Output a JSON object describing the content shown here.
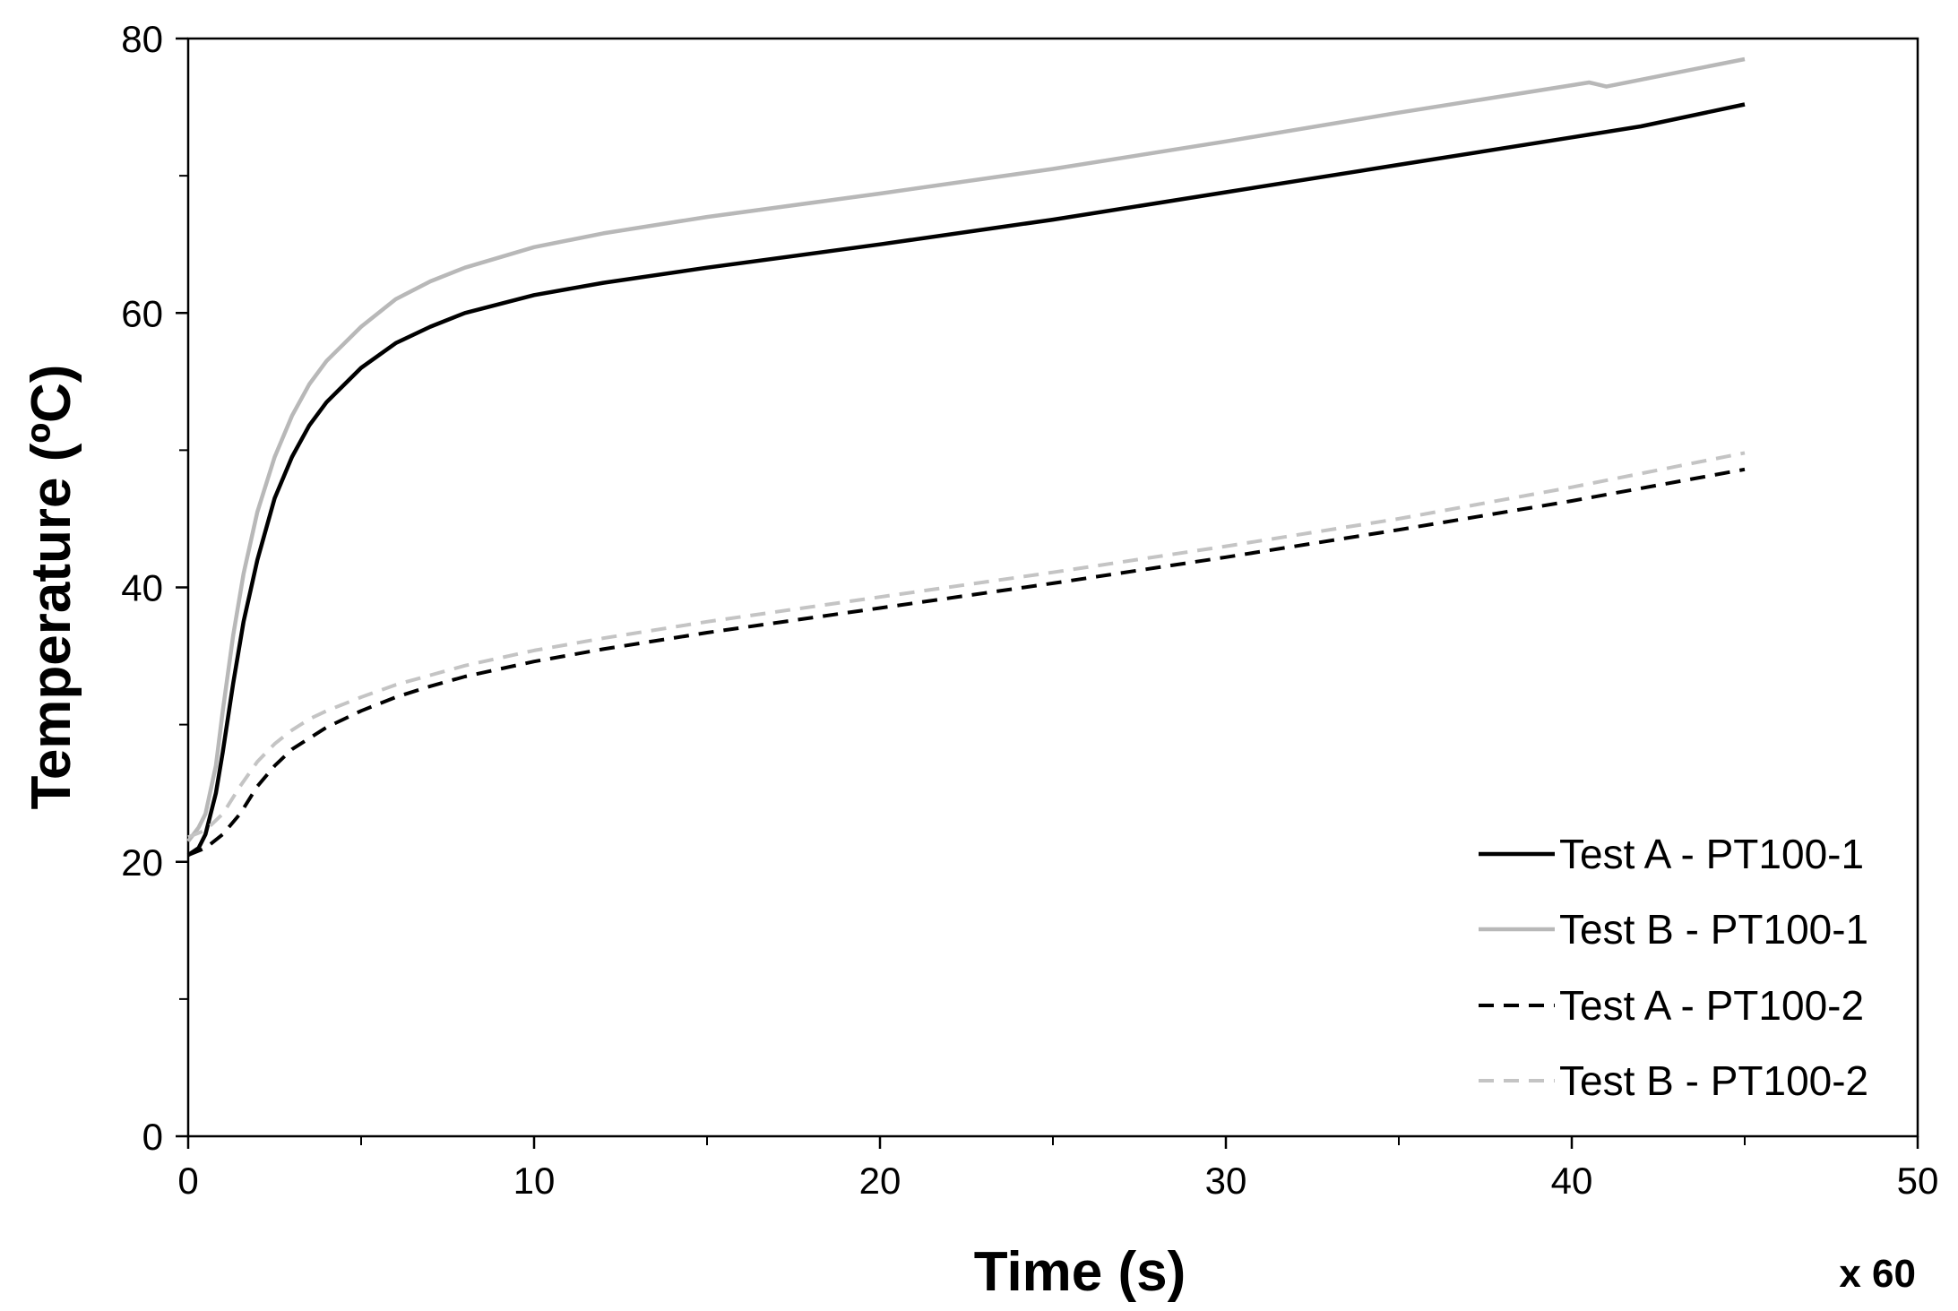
{
  "chart_data": {
    "type": "line",
    "title": "",
    "xlabel": "Time (s)",
    "ylabel": "Temperature (ºC)",
    "x_multiplier": "x 60",
    "xlim": [
      0,
      50
    ],
    "ylim": [
      0,
      80
    ],
    "x_ticks": [
      0,
      10,
      20,
      30,
      40,
      50
    ],
    "y_ticks": [
      0,
      20,
      40,
      60,
      80
    ],
    "grid": false,
    "legend_position": "bottom-right",
    "series": [
      {
        "name": "Test A - PT100-1",
        "color": "#000000",
        "style": "solid",
        "x": [
          0,
          0.3,
          0.5,
          0.8,
          1.0,
          1.3,
          1.6,
          2.0,
          2.5,
          3.0,
          3.5,
          4.0,
          5.0,
          6.0,
          7.0,
          8.0,
          10.0,
          12.0,
          15.0,
          20.0,
          25.0,
          30.0,
          35.0,
          40.0,
          42.0,
          45.0
        ],
        "y": [
          20.5,
          21.0,
          22.0,
          25.0,
          28.0,
          33.0,
          37.5,
          42.0,
          46.5,
          49.5,
          51.8,
          53.5,
          56.0,
          57.8,
          59.0,
          60.0,
          61.3,
          62.2,
          63.3,
          65.0,
          66.8,
          68.8,
          70.8,
          72.8,
          73.6,
          75.2
        ]
      },
      {
        "name": "Test B - PT100-1",
        "color": "#b8b8b8",
        "style": "solid",
        "x": [
          0,
          0.3,
          0.5,
          0.8,
          1.0,
          1.3,
          1.6,
          2.0,
          2.5,
          3.0,
          3.5,
          4.0,
          5.0,
          6.0,
          7.0,
          8.0,
          10.0,
          12.0,
          15.0,
          20.0,
          25.0,
          30.0,
          35.0,
          40.0,
          40.5,
          41.0,
          42.0,
          45.0
        ],
        "y": [
          21.5,
          22.5,
          23.5,
          27.0,
          31.0,
          36.5,
          41.0,
          45.5,
          49.5,
          52.5,
          54.8,
          56.5,
          59.0,
          61.0,
          62.3,
          63.3,
          64.8,
          65.8,
          67.0,
          68.7,
          70.5,
          72.5,
          74.6,
          76.6,
          76.8,
          76.5,
          77.0,
          78.5
        ]
      },
      {
        "name": "Test A - PT100-2",
        "color": "#000000",
        "style": "dashed",
        "x": [
          0,
          0.5,
          1.0,
          1.5,
          2.0,
          2.5,
          3.0,
          3.5,
          4.0,
          5.0,
          6.0,
          7.0,
          8.0,
          10.0,
          12.0,
          15.0,
          20.0,
          25.0,
          30.0,
          35.0,
          40.0,
          45.0
        ],
        "y": [
          20.5,
          21.0,
          22.0,
          23.5,
          25.5,
          27.0,
          28.2,
          29.0,
          29.8,
          31.0,
          32.0,
          32.8,
          33.5,
          34.6,
          35.5,
          36.7,
          38.5,
          40.3,
          42.2,
          44.2,
          46.3,
          48.6
        ]
      },
      {
        "name": "Test B - PT100-2",
        "color": "#c4c4c4",
        "style": "dashed",
        "x": [
          0,
          0.5,
          1.0,
          1.5,
          2.0,
          2.5,
          3.0,
          3.5,
          4.0,
          5.0,
          6.0,
          7.0,
          8.0,
          10.0,
          12.0,
          15.0,
          20.0,
          25.0,
          30.0,
          35.0,
          40.0,
          45.0
        ],
        "y": [
          21.8,
          22.3,
          23.5,
          25.5,
          27.3,
          28.6,
          29.6,
          30.4,
          31.0,
          32.0,
          32.9,
          33.6,
          34.3,
          35.4,
          36.3,
          37.5,
          39.3,
          41.1,
          43.0,
          45.0,
          47.3,
          49.8
        ]
      }
    ]
  }
}
